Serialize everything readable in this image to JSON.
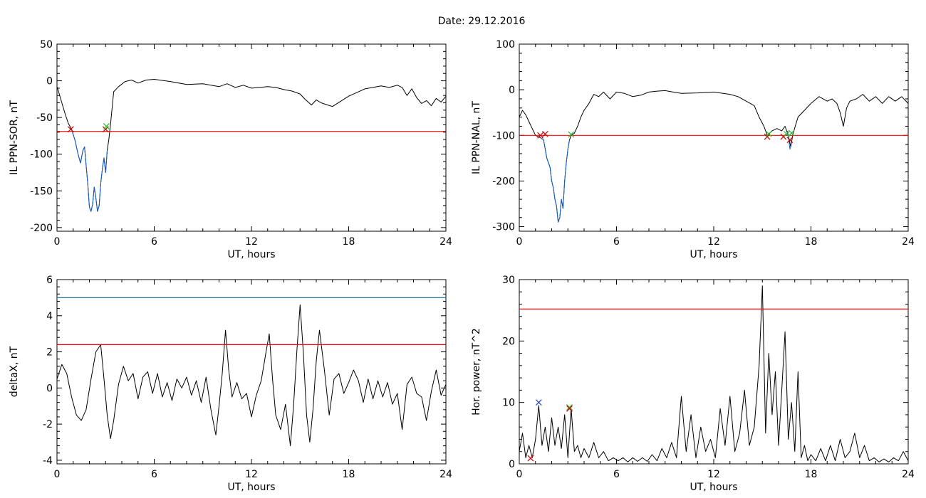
{
  "figure": {
    "title": "Date:  29.12.2016"
  },
  "chart_data": [
    {
      "type": "line",
      "xlabel": "UT, hours",
      "ylabel": "IL PPN-SOR, nT",
      "xlim": [
        0,
        24
      ],
      "ylim": [
        -205,
        50
      ],
      "xticks": [
        "0",
        "6",
        "12",
        "18",
        "24"
      ],
      "yticks": [
        "50",
        "0",
        "-50",
        "-100",
        "-150",
        "-200"
      ],
      "series": [
        {
          "color": "#000000",
          "x": [
            0,
            0.1,
            0.3,
            0.5,
            0.7,
            0.9,
            1.1,
            1.3,
            1.45,
            1.6,
            1.7,
            1.8,
            1.9,
            2.0,
            2.1,
            2.2,
            2.3,
            2.4,
            2.5,
            2.6,
            2.7,
            2.8,
            2.9,
            3.0,
            3.1,
            3.2,
            3.3,
            3.5,
            3.8,
            4.2,
            4.6,
            5.0,
            5.5,
            6.0,
            7.0,
            8.0,
            9.0,
            10.0,
            10.5,
            11.0,
            11.5,
            12.0,
            12.5,
            13.0,
            13.5,
            14.0,
            14.5,
            15.0,
            15.3,
            15.7,
            16.0,
            16.3,
            16.7,
            17.0,
            17.5,
            18.0,
            18.5,
            19.0,
            19.5,
            20.0,
            20.5,
            21.0,
            21.3,
            21.6,
            21.9,
            22.2,
            22.5,
            22.8,
            23.1,
            23.4,
            23.7,
            24.0
          ],
          "y": [
            -8,
            -15,
            -30,
            -45,
            -58,
            -66,
            -80,
            -100,
            -112,
            -95,
            -90,
            -115,
            -140,
            -172,
            -178,
            -168,
            -145,
            -160,
            -178,
            -170,
            -140,
            -120,
            -105,
            -125,
            -95,
            -80,
            -60,
            -15,
            -8,
            -1,
            1,
            -3,
            1,
            2,
            -1,
            -5,
            -4,
            -8,
            -4,
            -9,
            -6,
            -10,
            -9,
            -8,
            -9,
            -12,
            -14,
            -18,
            -25,
            -33,
            -26,
            -30,
            -33,
            -35,
            -28,
            -21,
            -16,
            -11,
            -9,
            -7,
            -9,
            -6,
            -9,
            -20,
            -11,
            -23,
            -31,
            -27,
            -34,
            -24,
            -29,
            -21
          ]
        },
        {
          "color": "#1060d0",
          "x": [
            0.9,
            1.1,
            1.3,
            1.45,
            1.6,
            1.7,
            1.8,
            1.9,
            2.0,
            2.1,
            2.2,
            2.3,
            2.4,
            2.5,
            2.6,
            2.7,
            2.8,
            2.9,
            3.0,
            3.1
          ],
          "y": [
            -66,
            -80,
            -100,
            -112,
            -95,
            -90,
            -115,
            -140,
            -172,
            -178,
            -168,
            -145,
            -160,
            -178,
            -170,
            -140,
            -120,
            -105,
            -125,
            -95
          ]
        },
        {
          "color": "#ff0000",
          "x": [
            0,
            24
          ],
          "y": [
            -69,
            -69
          ]
        }
      ],
      "markers": [
        {
          "x": 0.85,
          "y": -66,
          "color": "#cc0000"
        },
        {
          "x": 3.0,
          "y": -66,
          "color": "#cc0000"
        },
        {
          "x": 3.05,
          "y": -62,
          "color": "#22bb22"
        }
      ]
    },
    {
      "type": "line",
      "xlabel": "UT, hours",
      "ylabel": "IL PPN-NAL, nT",
      "xlim": [
        0,
        24
      ],
      "ylim": [
        -310,
        100
      ],
      "xticks": [
        "0",
        "6",
        "12",
        "18",
        "24"
      ],
      "yticks": [
        "100",
        "0",
        "-100",
        "-200",
        "-300"
      ],
      "series": [
        {
          "color": "#000000",
          "x": [
            0,
            0.2,
            0.4,
            0.6,
            0.8,
            1.0,
            1.3,
            1.5,
            1.7,
            1.9,
            2.0,
            2.1,
            2.2,
            2.3,
            2.4,
            2.5,
            2.6,
            2.7,
            2.8,
            2.9,
            3.0,
            3.1,
            3.2,
            3.4,
            3.6,
            3.8,
            4.0,
            4.3,
            4.6,
            4.9,
            5.2,
            5.6,
            6.0,
            6.5,
            7.0,
            7.5,
            8.0,
            8.5,
            9.0,
            9.5,
            10.0,
            11.0,
            12.0,
            13.0,
            13.5,
            14.0,
            14.5,
            14.8,
            15.1,
            15.3,
            15.6,
            15.9,
            16.2,
            16.4,
            16.6,
            16.75,
            16.9,
            17.2,
            17.6,
            18.0,
            18.5,
            19.0,
            19.3,
            19.6,
            19.8,
            20.0,
            20.2,
            20.4,
            20.8,
            21.2,
            21.6,
            22.0,
            22.4,
            22.8,
            23.2,
            23.6,
            24.0
          ],
          "y": [
            -60,
            -45,
            -55,
            -70,
            -85,
            -100,
            -105,
            -110,
            -150,
            -170,
            -200,
            -215,
            -240,
            -255,
            -290,
            -280,
            -240,
            -260,
            -200,
            -160,
            -130,
            -110,
            -100,
            -95,
            -80,
            -60,
            -45,
            -30,
            -10,
            -15,
            -5,
            -20,
            -5,
            -8,
            -15,
            -12,
            -5,
            -3,
            -2,
            -5,
            -8,
            -7,
            -5,
            -10,
            -15,
            -25,
            -35,
            -60,
            -80,
            -100,
            -90,
            -85,
            -90,
            -80,
            -100,
            -125,
            -95,
            -60,
            -45,
            -30,
            -15,
            -25,
            -20,
            -30,
            -50,
            -80,
            -40,
            -25,
            -20,
            -10,
            -25,
            -15,
            -30,
            -15,
            -25,
            -15,
            -30
          ]
        },
        {
          "color": "#1060d0",
          "x": [
            1.3,
            1.5,
            1.7,
            1.9,
            2.0,
            2.1,
            2.2,
            2.3,
            2.4,
            2.5,
            2.6,
            2.7,
            2.8,
            2.9,
            3.0,
            3.1
          ],
          "y": [
            -105,
            -110,
            -150,
            -170,
            -200,
            -215,
            -240,
            -255,
            -290,
            -280,
            -240,
            -260,
            -200,
            -160,
            -130,
            -110
          ]
        },
        {
          "color": "#1060d0",
          "x": [
            16.55,
            16.6,
            16.65,
            16.7,
            16.75
          ],
          "y": [
            -90,
            -100,
            -115,
            -130,
            -125
          ]
        },
        {
          "color": "#ff0000",
          "x": [
            0,
            24
          ],
          "y": [
            -100,
            -100
          ]
        }
      ],
      "markers": [
        {
          "x": 1.3,
          "y": -100,
          "color": "#cc0000"
        },
        {
          "x": 1.6,
          "y": -97,
          "color": "#cc0000"
        },
        {
          "x": 3.2,
          "y": -98,
          "color": "#22bb22"
        },
        {
          "x": 15.3,
          "y": -103,
          "color": "#cc0000"
        },
        {
          "x": 15.4,
          "y": -97,
          "color": "#22bb22"
        },
        {
          "x": 16.3,
          "y": -103,
          "color": "#cc0000"
        },
        {
          "x": 16.5,
          "y": -97,
          "color": "#22bb22"
        },
        {
          "x": 16.7,
          "y": -110,
          "color": "#cc0000"
        },
        {
          "x": 16.8,
          "y": -95,
          "color": "#22bb22"
        }
      ]
    },
    {
      "type": "line",
      "xlabel": "UT, hours",
      "ylabel": "deltaX, nT",
      "xlim": [
        0,
        24
      ],
      "ylim": [
        -4.2,
        6
      ],
      "xticks": [
        "0",
        "6",
        "12",
        "18",
        "24"
      ],
      "yticks": [
        "6",
        "4",
        "2",
        "0",
        "-2",
        "-4"
      ],
      "series": [
        {
          "color": "#000000",
          "x": [
            0,
            0.3,
            0.6,
            0.9,
            1.2,
            1.5,
            1.8,
            2.1,
            2.4,
            2.7,
            2.9,
            3.1,
            3.3,
            3.5,
            3.8,
            4.1,
            4.4,
            4.7,
            5.0,
            5.3,
            5.6,
            5.9,
            6.2,
            6.5,
            6.8,
            7.1,
            7.4,
            7.7,
            8.0,
            8.3,
            8.6,
            8.9,
            9.2,
            9.5,
            9.8,
            10.0,
            10.2,
            10.4,
            10.6,
            10.8,
            11.1,
            11.4,
            11.7,
            12.0,
            12.3,
            12.6,
            12.9,
            13.1,
            13.3,
            13.5,
            13.8,
            14.1,
            14.4,
            14.6,
            14.8,
            15.0,
            15.2,
            15.4,
            15.6,
            15.8,
            16.0,
            16.2,
            16.5,
            16.8,
            17.1,
            17.4,
            17.7,
            18.0,
            18.3,
            18.6,
            18.9,
            19.2,
            19.5,
            19.8,
            20.1,
            20.4,
            20.7,
            21.0,
            21.3,
            21.6,
            21.9,
            22.2,
            22.5,
            22.8,
            23.1,
            23.4,
            23.7,
            24.0
          ],
          "y": [
            0.5,
            1.3,
            0.8,
            -0.5,
            -1.5,
            -1.8,
            -1.2,
            0.5,
            2.0,
            2.4,
            0.5,
            -1.5,
            -2.8,
            -1.8,
            0.2,
            1.2,
            0.4,
            0.8,
            -0.6,
            0.6,
            0.9,
            -0.3,
            0.8,
            -0.5,
            0.3,
            -0.7,
            0.5,
            0.0,
            0.6,
            -0.4,
            0.4,
            -0.8,
            0.6,
            -1.2,
            -2.6,
            -1.0,
            0.8,
            3.2,
            1.0,
            -0.5,
            0.3,
            -0.6,
            -0.3,
            -1.6,
            -0.4,
            0.4,
            2.0,
            3.0,
            0.5,
            -1.5,
            -2.3,
            -0.9,
            -3.2,
            -1.0,
            2.0,
            4.6,
            2.0,
            -1.5,
            -3.0,
            -1.2,
            1.5,
            3.2,
            1.0,
            -1.5,
            0.5,
            0.8,
            -0.3,
            0.3,
            1.0,
            0.4,
            -0.8,
            0.5,
            -0.6,
            0.4,
            -0.5,
            0.3,
            -0.9,
            -0.3,
            -2.3,
            0.2,
            0.6,
            -0.3,
            -0.5,
            -1.8,
            -0.2,
            1.0,
            -0.4,
            0.2
          ]
        },
        {
          "color": "#2a7fa8",
          "x": [
            0,
            24
          ],
          "y": [
            5.0,
            5.0
          ]
        },
        {
          "color": "#ff0000",
          "x": [
            0,
            24
          ],
          "y": [
            2.4,
            2.4
          ]
        }
      ],
      "markers": []
    },
    {
      "type": "line",
      "xlabel": "UT, hours",
      "ylabel": "Hor. power, nT^2",
      "xlim": [
        0,
        24
      ],
      "ylim": [
        0,
        30
      ],
      "xticks": [
        "0",
        "6",
        "12",
        "18",
        "24"
      ],
      "yticks": [
        "30",
        "20",
        "10",
        "0"
      ],
      "series": [
        {
          "color": "#000000",
          "x": [
            0,
            0.2,
            0.4,
            0.6,
            0.8,
            1.0,
            1.2,
            1.4,
            1.6,
            1.8,
            2.0,
            2.2,
            2.4,
            2.6,
            2.8,
            3.0,
            3.2,
            3.4,
            3.6,
            3.8,
            4.0,
            4.3,
            4.6,
            4.9,
            5.2,
            5.5,
            5.8,
            6.1,
            6.4,
            6.7,
            7.0,
            7.3,
            7.6,
            7.9,
            8.2,
            8.5,
            8.8,
            9.1,
            9.4,
            9.7,
            10.0,
            10.3,
            10.6,
            10.9,
            11.2,
            11.5,
            11.8,
            12.1,
            12.4,
            12.7,
            13.0,
            13.3,
            13.6,
            13.9,
            14.2,
            14.5,
            14.8,
            15.0,
            15.2,
            15.4,
            15.6,
            15.8,
            16.0,
            16.2,
            16.4,
            16.6,
            16.8,
            17.0,
            17.2,
            17.4,
            17.6,
            17.8,
            18.0,
            18.3,
            18.6,
            18.9,
            19.2,
            19.5,
            19.8,
            20.1,
            20.4,
            20.7,
            21.0,
            21.3,
            21.6,
            21.9,
            22.2,
            22.5,
            22.8,
            23.1,
            23.4,
            23.7,
            24.0
          ],
          "y": [
            2.0,
            5.0,
            1.0,
            3.0,
            1.0,
            4.0,
            9.5,
            3.0,
            6.0,
            2.0,
            7.5,
            3.0,
            6.0,
            2.5,
            8.0,
            1.0,
            9.0,
            2.0,
            3.0,
            1.0,
            2.5,
            1.0,
            3.5,
            1.0,
            2.0,
            0.5,
            1.0,
            0.5,
            1.0,
            0.3,
            1.0,
            0.4,
            1.0,
            0.4,
            1.5,
            0.5,
            2.5,
            1.0,
            3.5,
            1.0,
            11.0,
            2.0,
            8.0,
            1.0,
            6.0,
            2.0,
            4.0,
            1.0,
            9.0,
            3.0,
            11.0,
            2.0,
            5.0,
            12.0,
            3.0,
            6.0,
            16.0,
            29.0,
            5.0,
            18.0,
            8.0,
            15.0,
            3.0,
            12.0,
            21.5,
            4.0,
            10.0,
            2.0,
            15.0,
            1.0,
            3.0,
            0.5,
            1.5,
            0.5,
            2.5,
            0.5,
            3.0,
            0.5,
            4.0,
            1.0,
            2.0,
            5.0,
            1.0,
            3.0,
            0.5,
            1.0,
            0.3,
            0.8,
            0.3,
            1.0,
            0.5,
            2.0,
            0.5
          ]
        },
        {
          "color": "#ff0000",
          "x": [
            0,
            24
          ],
          "y": [
            25.2,
            25.2
          ]
        }
      ],
      "markers": [
        {
          "x": 0.7,
          "y": 0.9,
          "color": "#cc0000"
        },
        {
          "x": 1.2,
          "y": 10.0,
          "color": "#2244cc"
        },
        {
          "x": 3.1,
          "y": 9.2,
          "color": "#22bb22"
        },
        {
          "x": 3.1,
          "y": 9.0,
          "color": "#cc0000"
        }
      ]
    }
  ]
}
